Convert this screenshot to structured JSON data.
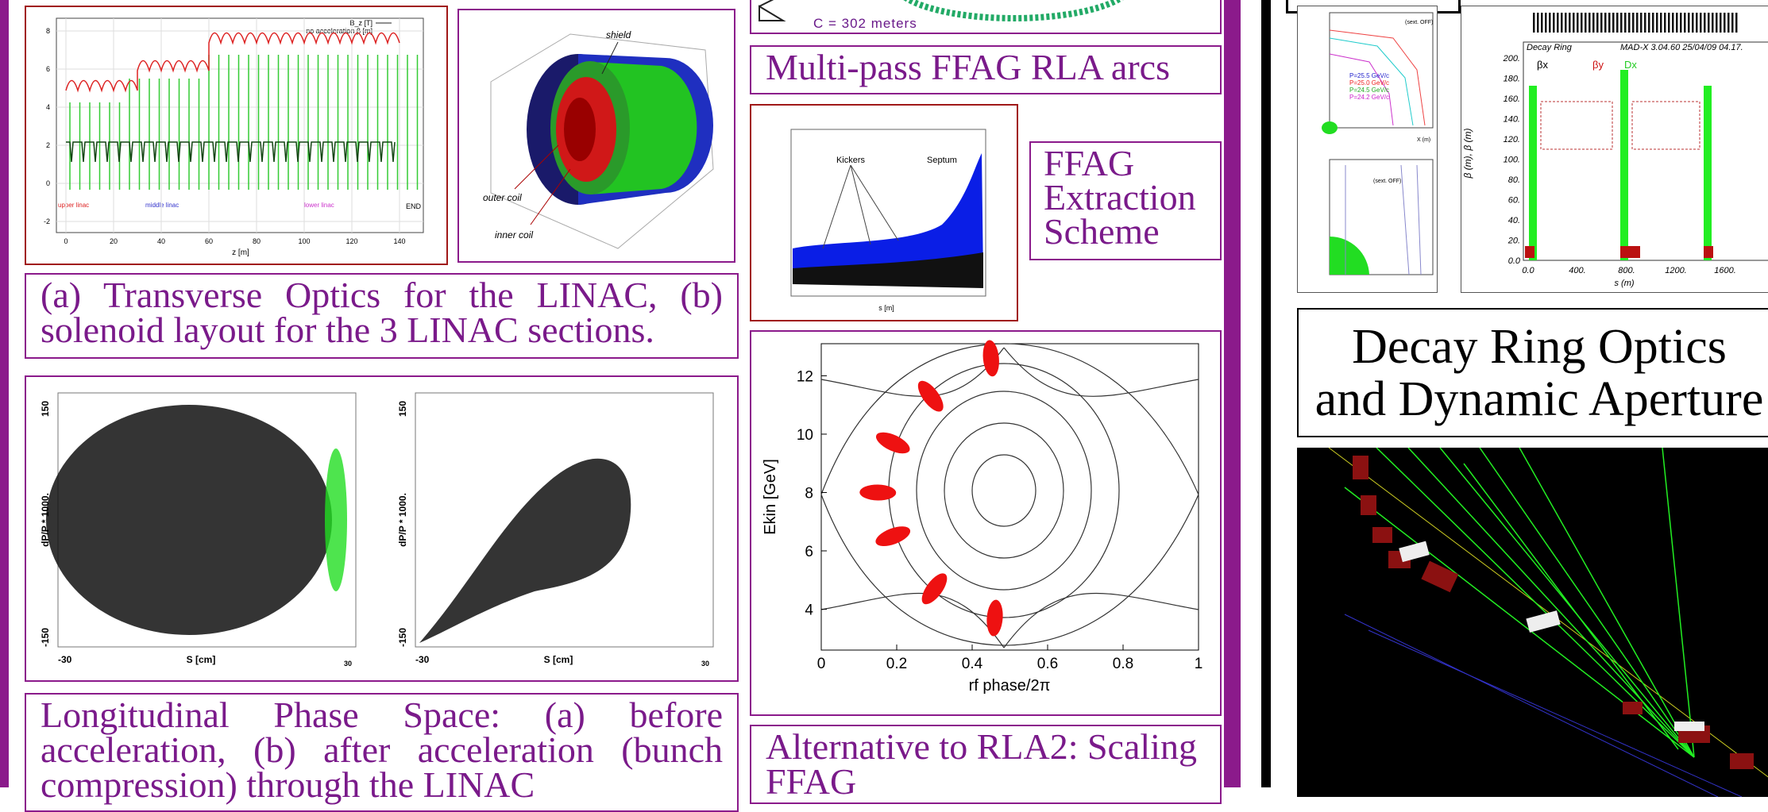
{
  "linac_optics": {
    "legend": [
      "B_z [T]",
      "no acceleration β [m]"
    ],
    "xticks": [
      0,
      20,
      40,
      60,
      80,
      100,
      120,
      140
    ],
    "yticks": [
      -2,
      0,
      2,
      4,
      6,
      8
    ],
    "xlabel": "z [m]",
    "end_label": "END",
    "section_labels": [
      "upper linac",
      "middle linac",
      "lower linac"
    ]
  },
  "solenoid": {
    "labels": [
      "shield",
      "outer coil",
      "inner coil"
    ]
  },
  "caption_a": "(a) Transverse Optics for the LINAC, (b) solenoid layout for the 3 LINAC sections.",
  "phase_space": {
    "ylabel": "dP/P * 1000.",
    "xlabel": "S [cm]",
    "y_top": "150",
    "y_bottom": "-150",
    "x_left": "-30",
    "x_right": "30"
  },
  "caption_longitudinal": "Longitudinal Phase Space: (a) before acceleration, (b) after acceleration (bunch compression) through the LINAC",
  "arc": {
    "circumference": "C = 302 meters"
  },
  "caption_arcs": "Multi-pass FFAG RLA arcs",
  "extraction_plot": {
    "labels": [
      "Kickers",
      "Septum"
    ],
    "xlabel": "s [m]"
  },
  "caption_extraction": "FFAG Extraction Scheme",
  "rla_phase": {
    "xlim": [
      0,
      1
    ],
    "xticks": [
      0,
      0.2,
      0.4,
      0.6,
      0.8,
      1
    ],
    "ylim": [
      2.6,
      13.1
    ],
    "yticks": [
      4,
      6,
      8,
      10,
      12
    ],
    "xlabel": "rf phase/2π",
    "ylabel": "Ekin [GeV]",
    "bunches": {
      "phase": [
        0.45,
        0.29,
        0.19,
        0.15,
        0.19,
        0.3,
        0.46
      ],
      "energy": [
        12.6,
        11.3,
        9.7,
        8.0,
        6.5,
        4.7,
        3.7
      ]
    }
  },
  "caption_alternative": "Alternative to RLA2: Scaling FFAG",
  "decay_ring_plots": {
    "title": "Decay Ring",
    "code": "MAD-X 3.04.60 25/04/09 04.17.",
    "ylabel": "β (m), β (m)",
    "xlabel": "s (m)",
    "yticks": [
      "0.0",
      "20.",
      "40.",
      "60.",
      "80.",
      "100.",
      "120.",
      "140.",
      "160.",
      "180.",
      "200."
    ],
    "xticks": [
      "0.0",
      "400.",
      "800.",
      "1200.",
      "1600."
    ],
    "legend": [
      "βx",
      "βy",
      "Dx"
    ]
  },
  "dynamic_aperture": {
    "labels": [
      "(sext. OFF)",
      "(sext. OFF)"
    ],
    "momenta": [
      "P=25.5 GeV/c",
      "P=25.0 GeV/c",
      "P=24.5 GeV/c",
      "P=24.2 GeV/c"
    ],
    "xlabel": "X (m)"
  },
  "caption_decay": "Decay Ring Optics and Dynamic Aperture"
}
